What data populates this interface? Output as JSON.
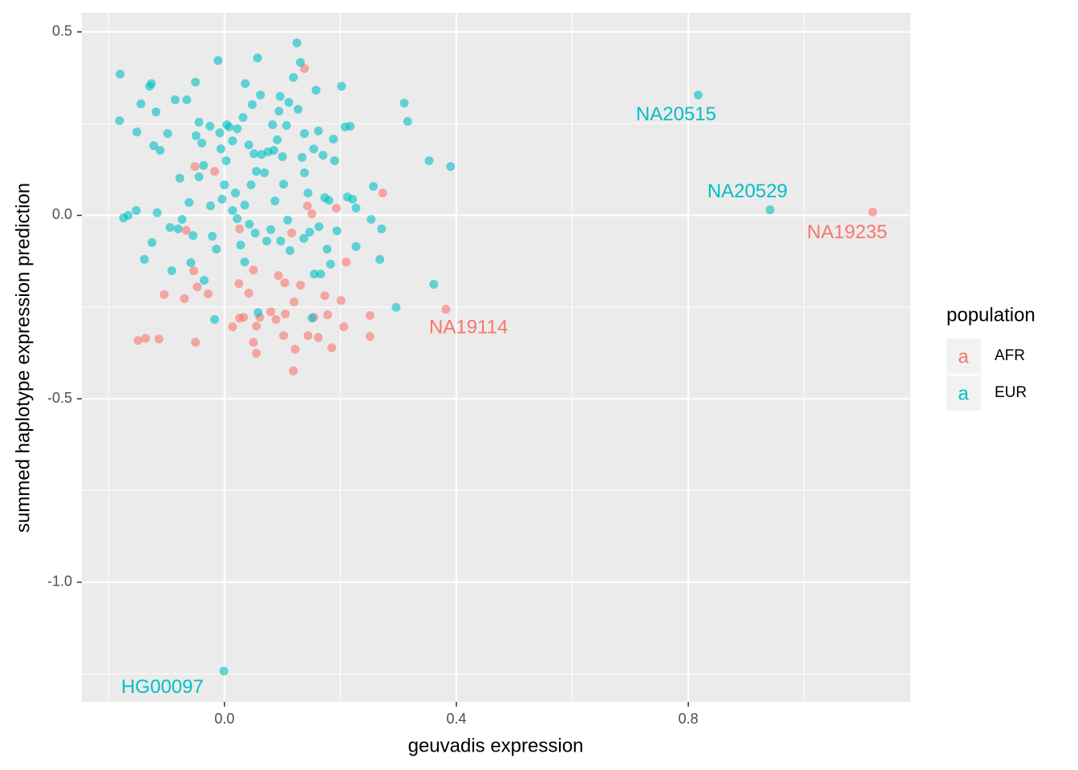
{
  "chart_data": {
    "type": "scatter",
    "x_label": "geuvadis expression",
    "y_label": "summed haplotype expression prediction",
    "xlim": [
      -0.246,
      1.183
    ],
    "ylim": [
      -1.326,
      0.552
    ],
    "xticks": [
      {
        "value": 0,
        "label": "0.0"
      },
      {
        "value": 0.4,
        "label": "0.4"
      },
      {
        "value": 0.8,
        "label": "0.8"
      }
    ],
    "yticks": [
      {
        "value": 0.5,
        "label": "0.5"
      },
      {
        "value": 0,
        "label": "0.0"
      },
      {
        "value": -0.5,
        "label": "-0.5"
      },
      {
        "value": -1,
        "label": "-1.0"
      }
    ],
    "x_minor_ticks": [
      -0.2,
      0.2,
      0.6,
      1.0
    ],
    "y_minor_ticks": [
      0.25,
      -0.25,
      -0.75,
      -1.25
    ],
    "grid": true,
    "legend_title": "population",
    "legend_position": "right",
    "legend_key_label": "a",
    "series": [
      {
        "name": "AFR",
        "color": "#F8766D",
        "x": [
          0.138,
          0.273,
          -0.051,
          -0.017,
          -0.066,
          0.026,
          -0.053,
          0.05,
          0.025,
          0.093,
          0.104,
          0.131,
          -0.104,
          -0.069,
          -0.047,
          -0.028,
          0.042,
          0.12,
          0.173,
          0.201,
          0.21,
          0.193,
          0.116,
          -0.136,
          -0.149,
          -0.113,
          -0.05,
          0.014,
          0.026,
          0.033,
          0.055,
          0.061,
          0.05,
          0.055,
          0.08,
          0.089,
          0.105,
          0.102,
          0.122,
          0.119,
          0.144,
          0.154,
          0.162,
          0.178,
          0.185,
          0.206,
          0.251,
          0.251,
          0.143,
          0.151,
          0.382,
          1.118
        ],
        "values": [
          0.4,
          0.061,
          0.133,
          0.12,
          -0.041,
          -0.037,
          -0.151,
          -0.149,
          -0.186,
          -0.164,
          -0.184,
          -0.19,
          -0.216,
          -0.227,
          -0.195,
          -0.214,
          -0.212,
          -0.236,
          -0.219,
          -0.232,
          -0.127,
          0.02,
          -0.048,
          -0.335,
          -0.341,
          -0.337,
          -0.346,
          -0.304,
          -0.28,
          -0.278,
          -0.302,
          -0.278,
          -0.346,
          -0.376,
          -0.263,
          -0.284,
          -0.269,
          -0.328,
          -0.365,
          -0.424,
          -0.328,
          -0.278,
          -0.333,
          -0.271,
          -0.361,
          -0.304,
          -0.273,
          -0.33,
          0.026,
          0.004,
          -0.256,
          0.009
        ]
      },
      {
        "name": "EUR",
        "color": "#00BFC4",
        "x": [
          -0.18,
          -0.181,
          -0.174,
          -0.166,
          -0.152,
          -0.151,
          -0.144,
          -0.138,
          -0.129,
          -0.126,
          -0.118,
          -0.122,
          -0.125,
          -0.116,
          -0.111,
          -0.098,
          -0.094,
          -0.091,
          -0.085,
          -0.077,
          -0.073,
          -0.065,
          -0.061,
          -0.058,
          -0.05,
          -0.049,
          -0.044,
          -0.036,
          -0.035,
          -0.024,
          -0.017,
          -0.011,
          -0.014,
          -0.008,
          -0.006,
          0.0,
          0.003,
          0.008,
          0.014,
          0.019,
          0.022,
          0.028,
          0.032,
          0.036,
          0.042,
          0.046,
          0.048,
          0.053,
          0.057,
          0.058,
          0.062,
          0.064,
          0.069,
          0.073,
          0.08,
          0.083,
          0.087,
          0.091,
          0.096,
          0.1,
          0.102,
          0.107,
          0.109,
          0.113,
          0.119,
          0.125,
          0.127,
          0.131,
          0.134,
          0.138,
          0.144,
          0.147,
          0.151,
          0.155,
          0.158,
          0.162,
          0.166,
          0.17,
          0.173,
          0.177,
          0.18,
          0.183,
          0.188,
          0.19,
          0.202,
          0.208,
          0.212,
          0.217,
          0.221,
          0.227,
          0.227,
          0.253,
          0.257,
          0.268,
          0.271,
          0.296,
          0.31,
          0.316,
          0.353,
          0.361,
          0.39,
          -0.044,
          -0.025,
          0.004,
          0.022,
          0.051,
          0.075,
          0.085,
          0.094,
          0.111,
          0.138,
          0.154,
          0.055,
          -0.004,
          -0.08,
          -0.054,
          -0.021,
          0.014,
          0.035,
          0.043,
          0.137,
          0.163,
          0.194,
          0.097,
          0.035,
          -0.039,
          0.817,
          0.941,
          -0.001
        ],
        "values": [
          0.385,
          0.258,
          -0.007,
          0.0,
          0.013,
          0.227,
          0.304,
          -0.12,
          0.352,
          0.359,
          0.282,
          0.19,
          -0.074,
          0.007,
          0.177,
          0.223,
          -0.033,
          -0.151,
          0.315,
          0.101,
          -0.011,
          0.315,
          0.035,
          -0.129,
          0.363,
          0.217,
          0.105,
          0.136,
          -0.177,
          0.026,
          -0.284,
          0.422,
          -0.092,
          0.225,
          0.181,
          0.083,
          0.149,
          0.241,
          0.203,
          0.061,
          -0.009,
          -0.081,
          0.267,
          0.359,
          0.192,
          0.083,
          0.302,
          -0.048,
          0.429,
          -0.265,
          0.328,
          0.166,
          0.116,
          -0.07,
          -0.039,
          0.247,
          0.039,
          0.206,
          0.324,
          0.16,
          0.085,
          0.245,
          -0.013,
          -0.096,
          0.376,
          0.47,
          0.289,
          0.417,
          0.158,
          0.116,
          0.061,
          -0.046,
          -0.28,
          -0.16,
          0.341,
          0.23,
          -0.16,
          0.164,
          0.048,
          -0.092,
          0.041,
          -0.133,
          0.208,
          0.149,
          0.352,
          0.241,
          0.05,
          0.243,
          0.044,
          0.02,
          -0.085,
          -0.011,
          0.079,
          -0.12,
          -0.037,
          -0.251,
          0.306,
          0.256,
          0.149,
          -0.188,
          0.133,
          0.254,
          0.243,
          0.247,
          0.236,
          0.168,
          0.173,
          0.177,
          0.284,
          0.308,
          0.223,
          0.181,
          0.12,
          0.044,
          -0.037,
          -0.055,
          -0.057,
          0.013,
          0.028,
          -0.024,
          -0.063,
          -0.031,
          -0.042,
          -0.07,
          -0.127,
          0.197,
          0.328,
          0.015,
          -1.242
        ]
      }
    ],
    "annotations": [
      {
        "text": "NA20515",
        "x": 0.779,
        "y": 0.273,
        "color": "#00BFC4"
      },
      {
        "text": "NA20529",
        "x": 0.902,
        "y": 0.063,
        "color": "#00BFC4"
      },
      {
        "text": "NA19235",
        "x": 1.074,
        "y": -0.048,
        "color": "#F8766D"
      },
      {
        "text": "NA19114",
        "x": 0.421,
        "y": -0.308,
        "color": "#F8766D"
      },
      {
        "text": "HG00097",
        "x": -0.107,
        "y": -1.288,
        "color": "#00BFC4"
      }
    ]
  }
}
